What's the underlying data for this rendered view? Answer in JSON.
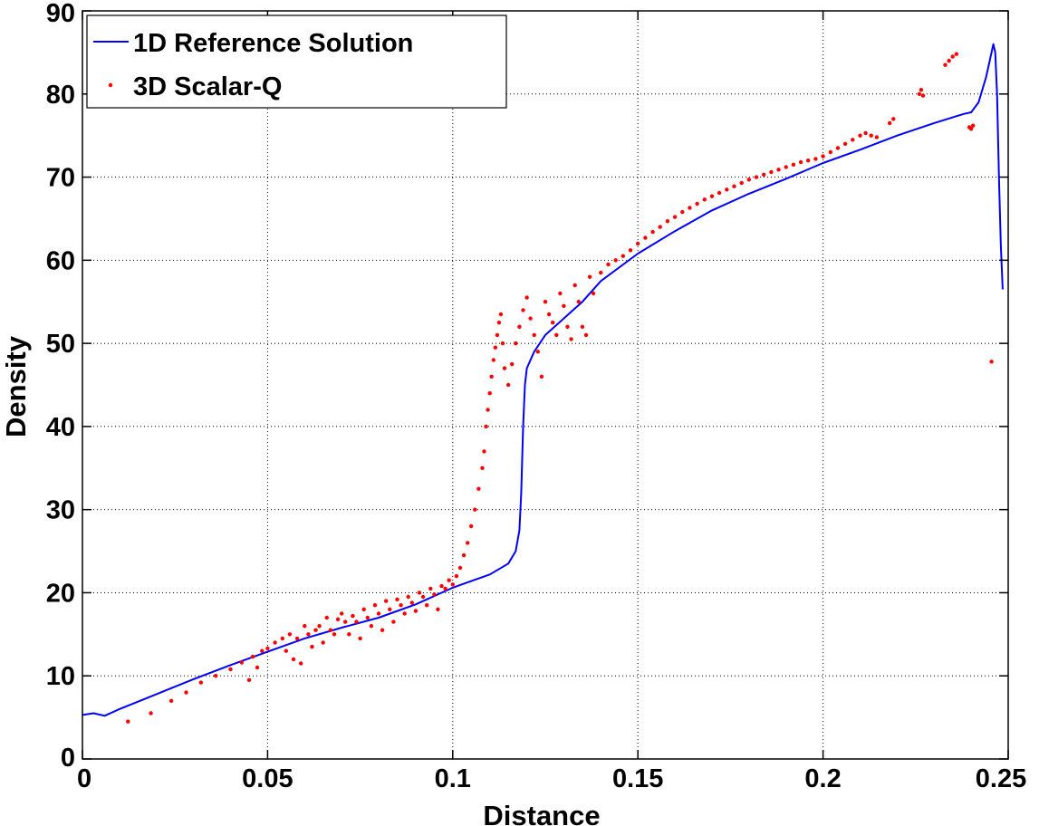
{
  "chart_data": {
    "type": "scatter",
    "xlabel": "Distance",
    "ylabel": "Density",
    "xlim": [
      0,
      0.25
    ],
    "ylim": [
      0,
      90
    ],
    "xticks": [
      "0",
      "0.05",
      "0.1",
      "0.15",
      "0.2",
      "0.25"
    ],
    "yticks": [
      "0",
      "10",
      "20",
      "30",
      "40",
      "50",
      "60",
      "70",
      "80",
      "90"
    ],
    "grid": true,
    "legend_position": "top-left",
    "series": [
      {
        "name": "1D Reference Solution",
        "kind": "line",
        "color": "#0000ff",
        "x": [
          0,
          0.003,
          0.006,
          0.01,
          0.02,
          0.03,
          0.04,
          0.05,
          0.06,
          0.07,
          0.08,
          0.09,
          0.1,
          0.105,
          0.11,
          0.115,
          0.117,
          0.118,
          0.1185,
          0.119,
          0.1195,
          0.12,
          0.122,
          0.125,
          0.13,
          0.135,
          0.14,
          0.15,
          0.16,
          0.17,
          0.18,
          0.19,
          0.2,
          0.21,
          0.22,
          0.23,
          0.238,
          0.24,
          0.242,
          0.244,
          0.245,
          0.246,
          0.2465,
          0.247,
          0.2475,
          0.248,
          0.2485
        ],
        "y": [
          5.3,
          5.5,
          5.2,
          6.0,
          7.8,
          9.6,
          11.3,
          12.9,
          14.5,
          15.8,
          17.0,
          18.6,
          20.6,
          21.4,
          22.2,
          23.5,
          25.0,
          27.5,
          32.0,
          40.0,
          45.0,
          47.0,
          49.0,
          51.0,
          53.0,
          55.0,
          57.5,
          60.8,
          63.5,
          66.0,
          68.0,
          69.8,
          71.7,
          73.3,
          75.0,
          76.5,
          77.6,
          77.8,
          79.0,
          82.0,
          84.0,
          86.0,
          85.0,
          80.0,
          70.0,
          62.0,
          56.5
        ]
      },
      {
        "name": "3D Scalar-Q",
        "kind": "points",
        "color": "#ff0000",
        "x": [
          0.0123,
          0.0185,
          0.024,
          0.028,
          0.032,
          0.036,
          0.04,
          0.043,
          0.045,
          0.046,
          0.0472,
          0.0485,
          0.05,
          0.052,
          0.054,
          0.055,
          0.056,
          0.057,
          0.058,
          0.059,
          0.06,
          0.061,
          0.062,
          0.063,
          0.064,
          0.065,
          0.066,
          0.067,
          0.068,
          0.069,
          0.07,
          0.071,
          0.072,
          0.073,
          0.074,
          0.075,
          0.076,
          0.077,
          0.078,
          0.079,
          0.08,
          0.081,
          0.082,
          0.083,
          0.084,
          0.085,
          0.086,
          0.087,
          0.088,
          0.089,
          0.09,
          0.091,
          0.092,
          0.093,
          0.094,
          0.095,
          0.096,
          0.097,
          0.098,
          0.099,
          0.1,
          0.101,
          0.102,
          0.103,
          0.104,
          0.105,
          0.106,
          0.107,
          0.108,
          0.1085,
          0.109,
          0.1095,
          0.11,
          0.1105,
          0.111,
          0.1115,
          0.112,
          0.1125,
          0.113,
          0.1135,
          0.114,
          0.115,
          0.116,
          0.117,
          0.118,
          0.119,
          0.12,
          0.121,
          0.122,
          0.123,
          0.124,
          0.125,
          0.126,
          0.127,
          0.128,
          0.129,
          0.13,
          0.131,
          0.132,
          0.133,
          0.134,
          0.135,
          0.136,
          0.137,
          0.138,
          0.14,
          0.142,
          0.144,
          0.146,
          0.148,
          0.15,
          0.152,
          0.154,
          0.156,
          0.158,
          0.16,
          0.162,
          0.164,
          0.166,
          0.168,
          0.17,
          0.172,
          0.174,
          0.176,
          0.178,
          0.18,
          0.182,
          0.184,
          0.186,
          0.188,
          0.19,
          0.192,
          0.194,
          0.196,
          0.198,
          0.2,
          0.202,
          0.204,
          0.206,
          0.208,
          0.21,
          0.2115,
          0.213,
          0.2145,
          0.218,
          0.219,
          0.226,
          0.2265,
          0.227,
          0.233,
          0.234,
          0.235,
          0.236,
          0.2395,
          0.24,
          0.2405,
          0.2455
        ],
        "y": [
          4.5,
          5.5,
          7.0,
          8.0,
          9.2,
          10.0,
          10.8,
          11.6,
          9.5,
          12.3,
          11.0,
          13.0,
          13.3,
          14.0,
          14.5,
          13.0,
          15.0,
          12.0,
          14.5,
          11.5,
          16.0,
          15.0,
          13.5,
          15.5,
          16.0,
          14.0,
          17.0,
          15.5,
          15.0,
          16.8,
          17.5,
          16.5,
          15.0,
          17.2,
          16.5,
          14.5,
          18.0,
          17.0,
          16.0,
          18.5,
          17.5,
          15.5,
          19.0,
          18.0,
          16.5,
          19.2,
          18.5,
          17.5,
          19.5,
          18.8,
          17.8,
          20.0,
          19.5,
          18.5,
          20.5,
          19.8,
          18.0,
          20.8,
          20.5,
          21.5,
          21.0,
          22.0,
          23.0,
          24.5,
          26.0,
          28.0,
          30.0,
          32.5,
          35.0,
          37.0,
          40.0,
          42.0,
          44.0,
          46.0,
          48.0,
          49.5,
          51.0,
          52.5,
          53.5,
          50.0,
          47.0,
          45.0,
          47.5,
          50.0,
          52.0,
          54.0,
          55.5,
          53.0,
          51.0,
          49.0,
          46.0,
          55.0,
          53.5,
          52.5,
          51.0,
          56.0,
          54.5,
          52.0,
          50.5,
          57.0,
          55.0,
          52.0,
          51.0,
          58.0,
          56.0,
          58.5,
          59.5,
          60.0,
          60.5,
          61.2,
          62.0,
          62.7,
          63.4,
          64.0,
          64.7,
          65.2,
          65.8,
          66.3,
          66.8,
          67.3,
          67.7,
          68.1,
          68.5,
          68.9,
          69.3,
          69.7,
          70.0,
          70.3,
          70.6,
          70.9,
          71.2,
          71.5,
          71.8,
          72.0,
          72.2,
          72.5,
          73.0,
          73.5,
          74.0,
          74.5,
          75.0,
          75.3,
          75.0,
          74.8,
          76.5,
          77.0,
          80.0,
          80.5,
          79.8,
          83.5,
          84.0,
          84.5,
          84.8,
          76.0,
          75.8,
          76.2,
          47.8
        ]
      }
    ]
  }
}
